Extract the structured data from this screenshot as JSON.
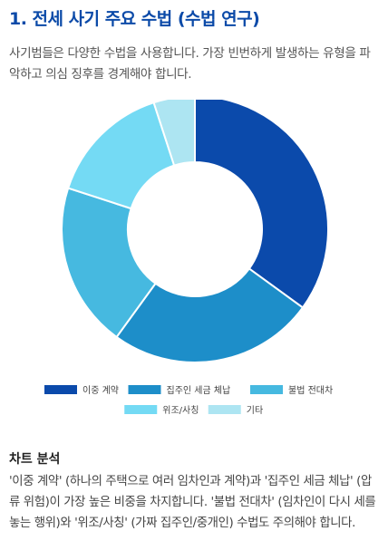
{
  "header": {
    "title": "1. 전세 사기 주요 수법 (수법 연구)",
    "description": "사기범들은 다양한 수법을 사용합니다. 가장 빈번하게 발생하는 유형을 파악하고 의심 징후를 경계해야 합니다."
  },
  "chart_data": {
    "type": "pie",
    "donut": true,
    "title": "",
    "categories": [
      "이중 계약",
      "집주인 세금 체납",
      "불법 전대차",
      "위조/사칭",
      "기타"
    ],
    "values": [
      35,
      25,
      20,
      15,
      5
    ],
    "colors": [
      "#0b4aab",
      "#1d8ec9",
      "#46b9e0",
      "#74daf4",
      "#ade5f2"
    ],
    "legend_position": "bottom"
  },
  "analysis": {
    "title": "차트 분석",
    "body": "'이중 계약' (하나의 주택으로 여러 임차인과 계약)과 '집주인 세금 체납' (압류 위험)이 가장 높은 비중을 차지합니다. '불법 전대차' (임차인이 다시 세를 놓는 행위)와 '위조/사칭' (가짜 집주인/중개인) 수법도 주의해야 합니다."
  }
}
